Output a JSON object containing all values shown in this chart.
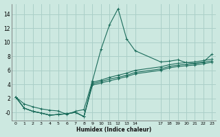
{
  "xlabel": "Humidex (Indice chaleur)",
  "bg_color": "#cce8e0",
  "grid_color": "#aacfc8",
  "line_color": "#1a6b5a",
  "xlim": [
    -0.5,
    23.5
  ],
  "ylim": [
    -1.2,
    15.5
  ],
  "xticks": [
    0,
    1,
    2,
    3,
    4,
    5,
    6,
    7,
    8,
    9,
    10,
    11,
    12,
    13,
    14,
    17,
    18,
    19,
    20,
    21,
    22,
    23
  ],
  "yticks": [
    0,
    2,
    4,
    6,
    8,
    10,
    12,
    14
  ],
  "ytick_labels": [
    "-0",
    "2",
    "4",
    "6",
    "8",
    "10",
    "12",
    "14"
  ],
  "series": [
    {
      "x": [
        0,
        1,
        2,
        3,
        4,
        5,
        6,
        7,
        8,
        9,
        10,
        11,
        12,
        13,
        14,
        17,
        18,
        19,
        20,
        21,
        22,
        23
      ],
      "y": [
        2.2,
        1.2,
        0.8,
        0.5,
        0.3,
        0.2,
        -0.3,
        0.15,
        0.4,
        4.5,
        9.0,
        12.5,
        14.8,
        10.5,
        8.8,
        7.2,
        7.3,
        7.5,
        7.1,
        7.0,
        7.2,
        8.3
      ]
    },
    {
      "x": [
        0,
        1,
        2,
        3,
        4,
        5,
        6,
        7,
        8,
        9,
        10,
        11,
        12,
        13,
        14,
        17,
        18,
        19,
        20,
        21,
        22,
        23
      ],
      "y": [
        2.2,
        0.6,
        0.15,
        -0.1,
        -0.4,
        -0.3,
        -0.2,
        0.0,
        -0.6,
        4.3,
        4.6,
        5.0,
        5.3,
        5.6,
        6.0,
        6.5,
        6.8,
        7.0,
        7.1,
        7.2,
        7.4,
        7.6
      ]
    },
    {
      "x": [
        0,
        1,
        2,
        3,
        4,
        5,
        6,
        7,
        8,
        9,
        10,
        11,
        12,
        13,
        14,
        17,
        18,
        19,
        20,
        21,
        22,
        23
      ],
      "y": [
        2.2,
        0.6,
        0.15,
        -0.1,
        -0.4,
        -0.3,
        -0.2,
        0.0,
        -0.6,
        4.1,
        4.4,
        4.75,
        5.0,
        5.3,
        5.7,
        6.2,
        6.55,
        6.75,
        6.85,
        6.95,
        7.15,
        7.35
      ]
    },
    {
      "x": [
        0,
        1,
        2,
        3,
        4,
        5,
        6,
        7,
        8,
        9,
        10,
        11,
        12,
        13,
        14,
        17,
        18,
        19,
        20,
        21,
        22,
        23
      ],
      "y": [
        2.2,
        0.6,
        0.15,
        -0.1,
        -0.4,
        -0.3,
        -0.2,
        0.0,
        -0.6,
        3.9,
        4.2,
        4.5,
        4.8,
        5.1,
        5.5,
        6.0,
        6.35,
        6.55,
        6.65,
        6.75,
        6.95,
        7.15
      ]
    }
  ]
}
